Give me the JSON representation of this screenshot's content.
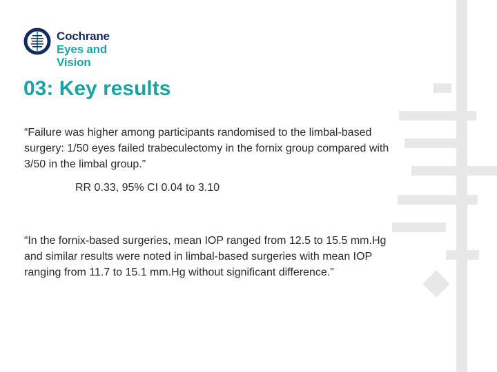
{
  "logo": {
    "line1": "Cochrane",
    "line2": "Eyes and Vision",
    "colors": {
      "navy": "#0f2c5a",
      "teal": "#1aa3a3"
    }
  },
  "slide": {
    "title": "03: Key results",
    "quote1": "“Failure was higher among participants randomised to the limbal-based surgery: 1/50 eyes failed trabeculectomy in the fornix group compared with 3/50 in the limbal group.”",
    "stat": "RR 0.33, 95% CI 0.04 to 3.10",
    "quote2": "“In the fornix-based surgeries, mean IOP ranged from 12.5 to 15.5 mm.Hg and similar results were noted in limbal-based surgeries with mean IOP ranging from 11.7 to 15.1 mm.Hg without significant difference.”"
  },
  "decor": {
    "color": "#e8e8e8"
  }
}
